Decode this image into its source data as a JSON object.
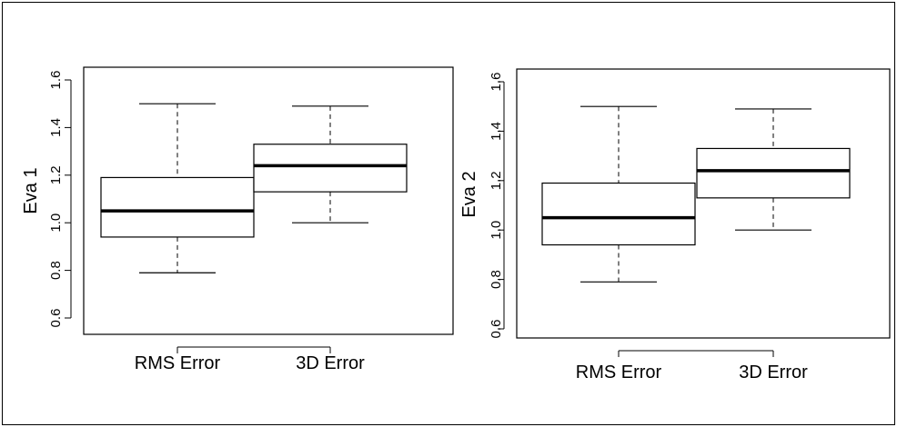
{
  "chart_data": [
    {
      "type": "boxplot",
      "ylabel": "Eva 1",
      "ylim": [
        0.6,
        1.6
      ],
      "yticks": [
        "0.6",
        "0.8",
        "1.0",
        "1.2",
        "1.4",
        "1.6"
      ],
      "categories": [
        "RMS Error",
        "3D Error"
      ],
      "boxes": [
        {
          "min": 0.79,
          "q1": 0.94,
          "median": 1.05,
          "q3": 1.19,
          "max": 1.5
        },
        {
          "min": 1.0,
          "q1": 1.13,
          "median": 1.24,
          "q3": 1.33,
          "max": 1.49
        }
      ]
    },
    {
      "type": "boxplot",
      "ylabel": "Eva 2",
      "ylim": [
        0.6,
        1.6
      ],
      "yticks": [
        "0.6",
        "0.8",
        "1.0",
        "1.2",
        "1.4",
        "1.6"
      ],
      "categories": [
        "RMS Error",
        "3D Error"
      ],
      "boxes": [
        {
          "min": 0.79,
          "q1": 0.94,
          "median": 1.05,
          "q3": 1.19,
          "max": 1.5
        },
        {
          "min": 1.0,
          "q1": 1.13,
          "median": 1.24,
          "q3": 1.33,
          "max": 1.49
        }
      ]
    }
  ]
}
